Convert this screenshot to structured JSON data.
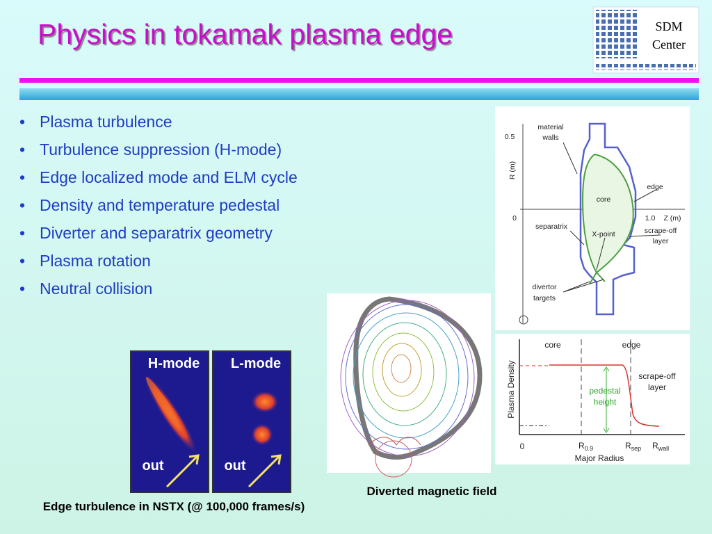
{
  "header": {
    "title": "Physics in tokamak plasma edge",
    "logo": {
      "line1": "SDM",
      "line2": "Center"
    }
  },
  "bullets": [
    "Plasma turbulence",
    "Turbulence suppression (H-mode)",
    "Edge localized mode and ELM cycle",
    "Density and temperature pedestal",
    "Diverter and separatrix geometry",
    "Plasma rotation",
    "Neutral collision"
  ],
  "figures": {
    "nstx": {
      "panels": [
        {
          "label": "H-mode",
          "arrow_label": "out"
        },
        {
          "label": "L-mode",
          "arrow_label": "out"
        }
      ],
      "caption": "Edge turbulence in NSTX (@ 100,000 frames/s)"
    },
    "diverted": {
      "caption": "Diverted magnetic field"
    },
    "geometry": {
      "material": [
        "material",
        "walls"
      ],
      "r_axis": "R (m)",
      "z_axis": "Z (m)",
      "tick_r": "0.5",
      "tick_zero": "0",
      "tick_z": "1.0",
      "core": "core",
      "edge": "edge",
      "separatrix": "separatrix",
      "x_point": "X-point",
      "scrape_off": [
        "scrape-off",
        "layer"
      ],
      "divertor": [
        "divertor",
        "targets"
      ]
    },
    "density": {
      "core": "core",
      "edge": "edge",
      "scrape_off": [
        "scrape-off",
        "layer"
      ],
      "pedestal": [
        "pedestal",
        "height"
      ],
      "y_axis": "Plasma Density",
      "x_axis": "Major Radius",
      "zero": "0",
      "r09": {
        "main": "R",
        "sub": "0.9"
      },
      "rsep": {
        "main": "R",
        "sub": "sep"
      },
      "rwall": {
        "main": "R",
        "sub": "wall"
      }
    }
  }
}
